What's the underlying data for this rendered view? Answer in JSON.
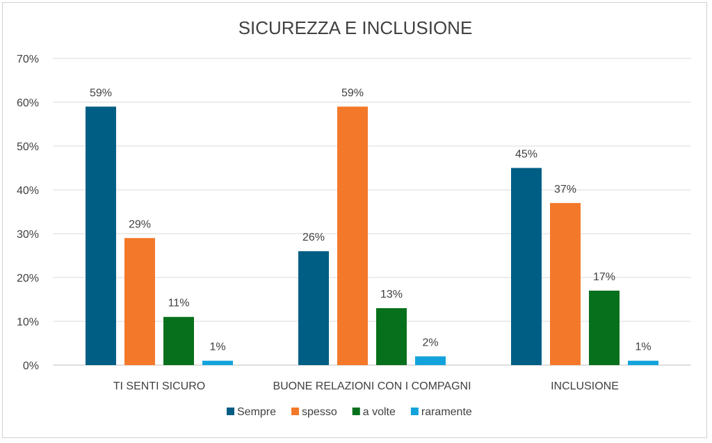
{
  "chart_data": {
    "type": "bar",
    "title": "SICUREZZA E INCLUSIONE",
    "categories": [
      "TI SENTI SICURO",
      "BUONE RELAZIONI CON I COMPAGNI",
      "INCLUSIONE"
    ],
    "series": [
      {
        "name": "Sempre",
        "color": "#005e84",
        "values": [
          59,
          26,
          45
        ]
      },
      {
        "name": "spesso",
        "color": "#f4782a",
        "values": [
          29,
          59,
          37
        ]
      },
      {
        "name": "a volte",
        "color": "#07701c",
        "values": [
          11,
          13,
          17
        ]
      },
      {
        "name": "raramente",
        "color": "#13a3dc",
        "values": [
          1,
          2,
          1
        ]
      }
    ],
    "value_format": "percent",
    "ylim": [
      0,
      70
    ],
    "yticks": [
      0,
      10,
      20,
      30,
      40,
      50,
      60,
      70
    ],
    "ytick_labels": [
      "0%",
      "10%",
      "20%",
      "30%",
      "40%",
      "50%",
      "60%",
      "70%"
    ],
    "grid": true,
    "legend_position": "bottom"
  }
}
